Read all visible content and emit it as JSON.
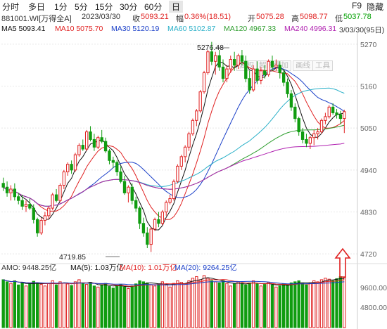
{
  "toolbar": {
    "items": [
      "分时",
      "多日",
      "1分",
      "5分",
      "15分",
      "30分",
      "60分",
      "日",
      "F9",
      "隐藏"
    ],
    "active": "日"
  },
  "ticker": {
    "code_name": "881001.WI[万得全A]",
    "date": "2023/03/30",
    "now_label": "收",
    "now_value": "5093.21",
    "change_label": "幅",
    "change_value": "0.36%(18.51)",
    "open_label": "开",
    "open_value": "5075.28",
    "high_label": "高",
    "high_value": "5098.77",
    "low_label": "低",
    "low_value": "5037.78"
  },
  "ma_legend": {
    "ma5": "MA5  5093.41",
    "ma10": "MA10  5075.70",
    "ma30": "MA30  5120.19",
    "ma60": "MA60  5102.87",
    "ma120": "MA120  4967.33",
    "ma240": "MA240  4996.31",
    "date_range": "3/03/30(95日)"
  },
  "buttons": {
    "fq": "复权",
    "overlay": "超级叠加",
    "draw": "画线",
    "tools": "工具"
  },
  "price_axis": [
    "5270",
    "5160",
    "5050",
    "4940",
    "4830",
    "4720"
  ],
  "annotations": {
    "high": "5276.48",
    "low": "4719.85"
  },
  "volume": {
    "amo": "AMO: 9448.25亿",
    "ma5": "MA(5): 1.03万亿",
    "ma10": "MA(10): 1.01万亿",
    "ma20": "MA(20): 9264.25亿",
    "axis": [
      "9600.00",
      "4800.00"
    ]
  },
  "colors": {
    "up": "#e02020",
    "down": "#109c10",
    "ma5": "#111111",
    "ma10": "#e02020",
    "ma30": "#1a3fc8",
    "ma60": "#2ab0c8",
    "ma120": "#2e9e2e",
    "ma240": "#b020b0"
  },
  "chart_data": {
    "type": "candlestick",
    "price_range": [
      4700,
      5290
    ],
    "candles": [
      [
        4905,
        4920,
        4885,
        4895
      ],
      [
        4895,
        4910,
        4870,
        4880
      ],
      [
        4880,
        4900,
        4860,
        4890
      ],
      [
        4890,
        4905,
        4860,
        4870
      ],
      [
        4870,
        4880,
        4850,
        4860
      ],
      [
        4860,
        4875,
        4835,
        4845
      ],
      [
        4845,
        4860,
        4830,
        4850
      ],
      [
        4850,
        4865,
        4835,
        4840
      ],
      [
        4840,
        4850,
        4800,
        4810
      ],
      [
        4810,
        4815,
        4765,
        4775
      ],
      [
        4775,
        4815,
        4770,
        4808
      ],
      [
        4808,
        4830,
        4795,
        4820
      ],
      [
        4820,
        4845,
        4810,
        4840
      ],
      [
        4840,
        4880,
        4835,
        4875
      ],
      [
        4875,
        4890,
        4855,
        4860
      ],
      [
        4860,
        4905,
        4855,
        4900
      ],
      [
        4900,
        4940,
        4890,
        4935
      ],
      [
        4935,
        4960,
        4925,
        4955
      ],
      [
        4955,
        4965,
        4930,
        4940
      ],
      [
        4940,
        4985,
        4935,
        4980
      ],
      [
        4980,
        5010,
        4975,
        5005
      ],
      [
        5005,
        5020,
        4990,
        4995
      ],
      [
        4995,
        5045,
        4990,
        5040
      ],
      [
        5040,
        5055,
        5015,
        5020
      ],
      [
        5020,
        5035,
        4990,
        5000
      ],
      [
        5000,
        5030,
        4995,
        5025
      ],
      [
        5025,
        5045,
        5010,
        5015
      ],
      [
        5015,
        5025,
        4985,
        4990
      ],
      [
        4990,
        4995,
        4955,
        4965
      ],
      [
        4965,
        4975,
        4945,
        4960
      ],
      [
        4960,
        4965,
        4925,
        4935
      ],
      [
        4935,
        4950,
        4905,
        4910
      ],
      [
        4910,
        4925,
        4875,
        4880
      ],
      [
        4880,
        4900,
        4855,
        4895
      ],
      [
        4895,
        4905,
        4850,
        4860
      ],
      [
        4860,
        4870,
        4830,
        4840
      ],
      [
        4840,
        4845,
        4785,
        4800
      ],
      [
        4800,
        4815,
        4765,
        4775
      ],
      [
        4775,
        4790,
        4735,
        4745
      ],
      [
        4745,
        4790,
        4725,
        4785
      ],
      [
        4785,
        4815,
        4780,
        4810
      ],
      [
        4810,
        4830,
        4790,
        4800
      ],
      [
        4800,
        4835,
        4795,
        4830
      ],
      [
        4830,
        4860,
        4820,
        4855
      ],
      [
        4855,
        4875,
        4850,
        4865
      ],
      [
        4865,
        4915,
        4860,
        4910
      ],
      [
        4910,
        4955,
        4905,
        4950
      ],
      [
        4950,
        4980,
        4940,
        4975
      ],
      [
        4975,
        5005,
        4960,
        5000
      ],
      [
        5000,
        5040,
        4990,
        5035
      ],
      [
        5035,
        5075,
        5030,
        5070
      ],
      [
        5070,
        5100,
        5055,
        5095
      ],
      [
        5095,
        5150,
        5090,
        5145
      ],
      [
        5145,
        5200,
        5140,
        5195
      ],
      [
        5195,
        5255,
        5190,
        5250
      ],
      [
        5250,
        5276,
        5215,
        5225
      ],
      [
        5225,
        5250,
        5190,
        5240
      ],
      [
        5240,
        5255,
        5200,
        5210
      ],
      [
        5210,
        5230,
        5170,
        5180
      ],
      [
        5180,
        5215,
        5170,
        5205
      ],
      [
        5205,
        5240,
        5195,
        5230
      ],
      [
        5230,
        5250,
        5200,
        5215
      ],
      [
        5215,
        5245,
        5205,
        5240
      ],
      [
        5240,
        5255,
        5215,
        5225
      ],
      [
        5225,
        5240,
        5170,
        5180
      ],
      [
        5180,
        5200,
        5140,
        5150
      ],
      [
        5150,
        5215,
        5145,
        5205
      ],
      [
        5205,
        5225,
        5165,
        5175
      ],
      [
        5175,
        5210,
        5165,
        5200
      ],
      [
        5200,
        5215,
        5180,
        5190
      ],
      [
        5190,
        5230,
        5185,
        5225
      ],
      [
        5225,
        5240,
        5200,
        5210
      ],
      [
        5210,
        5230,
        5200,
        5215
      ],
      [
        5215,
        5225,
        5180,
        5195
      ],
      [
        5195,
        5205,
        5160,
        5170
      ],
      [
        5170,
        5180,
        5130,
        5140
      ],
      [
        5140,
        5150,
        5095,
        5105
      ],
      [
        5105,
        5115,
        5065,
        5075
      ],
      [
        5075,
        5080,
        5030,
        5040
      ],
      [
        5040,
        5050,
        5010,
        5020
      ],
      [
        5020,
        5035,
        5000,
        5010
      ],
      [
        5010,
        5030,
        4995,
        5025
      ],
      [
        5025,
        5045,
        5005,
        5035
      ],
      [
        5035,
        5050,
        5020,
        5040
      ],
      [
        5040,
        5075,
        5035,
        5070
      ],
      [
        5070,
        5090,
        5060,
        5080
      ],
      [
        5080,
        5110,
        5075,
        5105
      ],
      [
        5105,
        5115,
        5085,
        5090
      ],
      [
        5090,
        5100,
        5075,
        5085
      ],
      [
        5085,
        5095,
        5060,
        5075
      ],
      [
        5075,
        5098,
        5037,
        5093
      ]
    ],
    "volumes": [
      0.92,
      0.88,
      0.85,
      0.9,
      0.82,
      0.87,
      0.8,
      0.84,
      0.89,
      0.86,
      0.83,
      0.8,
      0.85,
      0.9,
      0.82,
      0.88,
      0.86,
      0.84,
      0.81,
      0.88,
      0.92,
      0.85,
      0.83,
      0.87,
      0.8,
      0.78,
      0.82,
      0.85,
      0.79,
      0.76,
      0.8,
      0.83,
      0.78,
      0.75,
      0.8,
      0.84,
      0.9,
      0.88,
      0.86,
      0.82,
      0.8,
      0.84,
      0.88,
      0.82,
      0.78,
      0.85,
      0.9,
      0.87,
      0.84,
      0.9,
      0.95,
      0.98,
      0.92,
      1.0,
      0.95,
      0.9,
      0.88,
      0.86,
      0.9,
      0.85,
      0.8,
      0.84,
      0.88,
      0.85,
      0.82,
      0.86,
      0.9,
      0.84,
      0.8,
      0.83,
      0.87,
      0.82,
      0.78,
      0.8,
      0.84,
      0.82,
      0.86,
      0.88,
      0.9,
      0.85,
      0.82,
      0.86,
      0.9,
      0.88,
      0.92,
      0.95,
      0.93,
      0.9,
      0.94,
      0.98,
      0.96
    ]
  }
}
